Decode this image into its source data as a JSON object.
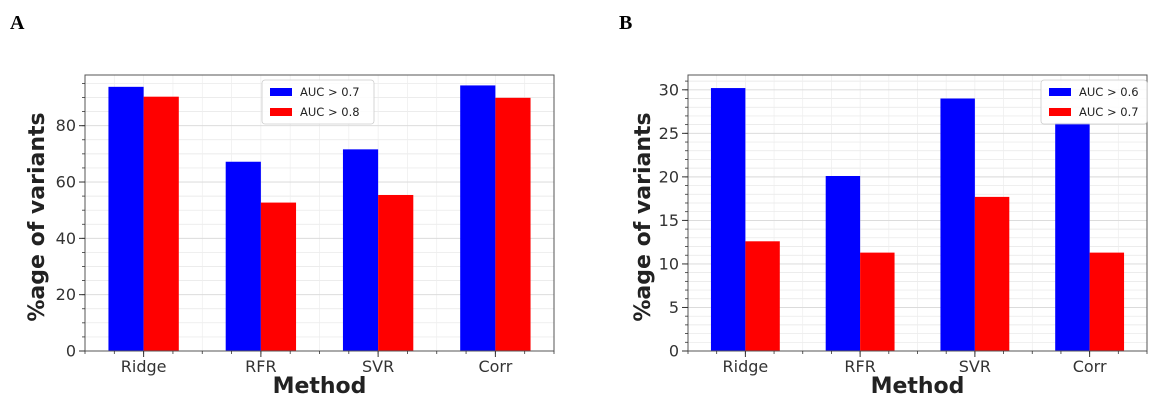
{
  "panels": [
    {
      "letter": "A"
    },
    {
      "letter": "B"
    }
  ],
  "chart_data": [
    {
      "type": "bar",
      "panel": "A",
      "categories": [
        "Ridge",
        "RFR",
        "SVR",
        "Corr"
      ],
      "series": [
        {
          "name": "AUC > 0.7",
          "color": "#0000ff",
          "values": [
            93.8,
            67.2,
            71.6,
            94.3
          ]
        },
        {
          "name": "AUC > 0.8",
          "color": "#ff0000",
          "values": [
            90.3,
            52.7,
            55.4,
            89.9
          ]
        }
      ],
      "xlabel": "Method",
      "ylabel": "%age of variants",
      "ylim": [
        0,
        98
      ],
      "yticks": [
        0,
        20,
        40,
        60,
        80
      ],
      "yminor_step": 5,
      "grid": true,
      "legend_position": "top-center"
    },
    {
      "type": "bar",
      "panel": "B",
      "categories": [
        "Ridge",
        "RFR",
        "SVR",
        "Corr"
      ],
      "series": [
        {
          "name": "AUC > 0.6",
          "color": "#0000ff",
          "values": [
            30.2,
            20.1,
            29.0,
            26.2
          ]
        },
        {
          "name": "AUC > 0.7",
          "color": "#ff0000",
          "values": [
            12.6,
            11.3,
            17.7,
            11.3
          ]
        }
      ],
      "xlabel": "Method",
      "ylabel": "%age of variants",
      "ylim": [
        0,
        31.7
      ],
      "yticks": [
        0,
        5,
        10,
        15,
        20,
        25,
        30
      ],
      "yminor_step": 1,
      "grid": true,
      "legend_position": "top-right"
    }
  ]
}
